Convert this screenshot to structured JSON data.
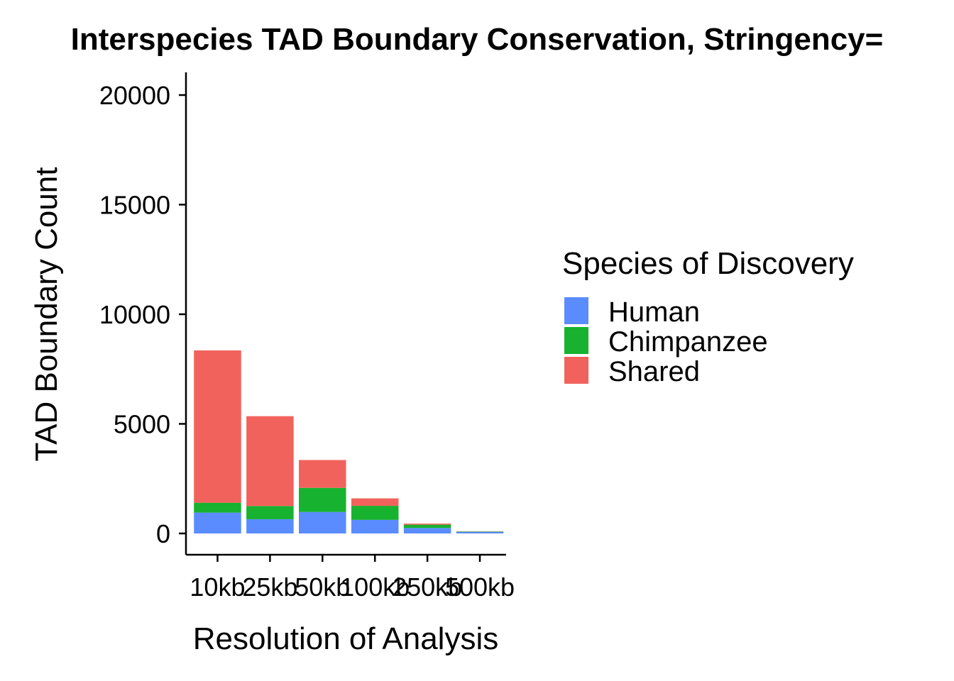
{
  "chart_data": {
    "type": "bar",
    "stacked": true,
    "title": "Interspecies TAD Boundary Conservation, Stringency=",
    "xlabel": "Resolution of Analysis",
    "ylabel": "TAD Boundary Count",
    "categories": [
      "10kb",
      "25kb",
      "50kb",
      "100kb",
      "250kb",
      "500kb"
    ],
    "ylim": [
      -1000,
      21000
    ],
    "yticks": [
      0,
      5000,
      10000,
      15000,
      20000
    ],
    "series": [
      {
        "name": "Human",
        "color": "#5A8CFF",
        "values": [
          950,
          650,
          980,
          620,
          250,
          70
        ]
      },
      {
        "name": "Chimpanzee",
        "color": "#17B22F",
        "values": [
          450,
          600,
          1100,
          640,
          150,
          20
        ]
      },
      {
        "name": "Shared",
        "color": "#F2625C",
        "values": [
          6950,
          4100,
          1270,
          340,
          50,
          10
        ]
      }
    ],
    "grid": false,
    "legend": {
      "title": "Species of Discovery",
      "position": "right"
    }
  }
}
